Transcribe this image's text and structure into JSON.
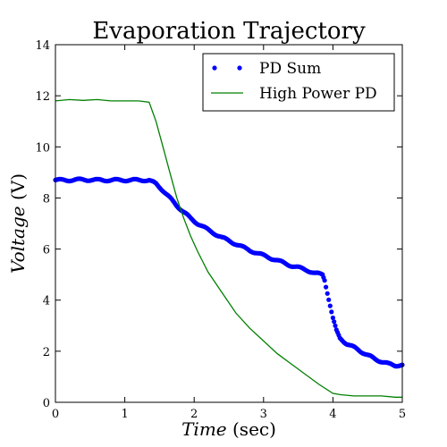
{
  "chart_data": {
    "type": "line",
    "title": "Evaporation Trajectory",
    "xlabel": {
      "main": "Time",
      "unit": " (sec)"
    },
    "ylabel": {
      "main": "Voltage",
      "unit": " (V)"
    },
    "xlim": [
      0,
      5
    ],
    "ylim": [
      0,
      14
    ],
    "xticks": [
      0,
      1,
      2,
      3,
      4,
      5
    ],
    "yticks": [
      0,
      2,
      4,
      6,
      8,
      10,
      12,
      14
    ],
    "grid": false,
    "legend_position": "top-right",
    "series": [
      {
        "name": "PD Sum",
        "style": "dots",
        "color": "#0000ff",
        "x": [
          0,
          0.2,
          0.4,
          0.6,
          0.8,
          1.0,
          1.2,
          1.35,
          1.45,
          1.55,
          1.65,
          1.75,
          1.85,
          1.95,
          2.05,
          2.2,
          2.4,
          2.6,
          2.8,
          3.0,
          3.2,
          3.4,
          3.6,
          3.75,
          3.85,
          3.88,
          3.92,
          3.96,
          4.0,
          4.05,
          4.1,
          4.2,
          4.3,
          4.4,
          4.5,
          4.6,
          4.7,
          4.8,
          4.9,
          5.0
        ],
        "y": [
          8.7,
          8.7,
          8.72,
          8.7,
          8.7,
          8.7,
          8.7,
          8.7,
          8.55,
          8.3,
          8.0,
          7.7,
          7.45,
          7.2,
          7.0,
          6.75,
          6.45,
          6.2,
          5.95,
          5.75,
          5.55,
          5.35,
          5.2,
          5.05,
          5.0,
          4.8,
          4.3,
          3.8,
          3.3,
          2.8,
          2.5,
          2.3,
          2.15,
          2.0,
          1.85,
          1.7,
          1.6,
          1.5,
          1.45,
          1.45
        ]
      },
      {
        "name": "High Power PD",
        "style": "line",
        "color": "#008000",
        "x": [
          0,
          0.2,
          0.4,
          0.6,
          0.8,
          1.0,
          1.2,
          1.35,
          1.45,
          1.55,
          1.65,
          1.75,
          1.85,
          1.95,
          2.05,
          2.2,
          2.4,
          2.6,
          2.8,
          3.0,
          3.2,
          3.4,
          3.6,
          3.8,
          4.0,
          4.1,
          4.3,
          4.5,
          4.7,
          4.9,
          5.0
        ],
        "y": [
          11.8,
          11.85,
          11.82,
          11.85,
          11.8,
          11.8,
          11.8,
          11.75,
          11.0,
          10.0,
          9.0,
          8.0,
          7.2,
          6.5,
          5.9,
          5.1,
          4.3,
          3.5,
          2.9,
          2.4,
          1.9,
          1.5,
          1.1,
          0.7,
          0.35,
          0.3,
          0.25,
          0.25,
          0.25,
          0.2,
          0.2
        ]
      }
    ]
  }
}
